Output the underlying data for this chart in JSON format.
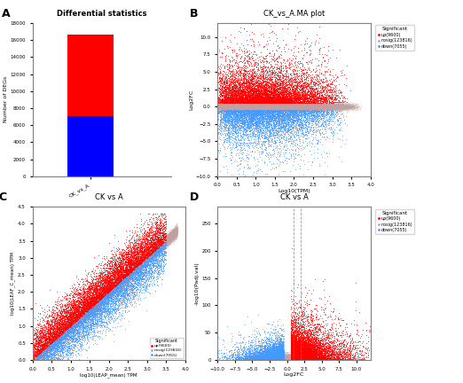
{
  "title_A": "Differential statistics",
  "title_B": "CK_vs_A.MA plot",
  "title_C": "CK vs A",
  "title_D": "CK vs A",
  "panel_labels": [
    "A",
    "B",
    "C",
    "D"
  ],
  "bar_down": 7055,
  "bar_up": 9600,
  "bar_total": 16655,
  "bar_color_up": "#FF0000",
  "bar_color_down": "#0000FF",
  "bar_label": "CK_vs_A",
  "ylabel_A": "Number of DEGs",
  "ylim_A": [
    0,
    18000
  ],
  "yticks_A": [
    0,
    2000,
    4000,
    6000,
    8000,
    10000,
    12000,
    14000,
    16000,
    18000
  ],
  "n_up": 9600,
  "n_nosig": 123816,
  "n_down": 7055,
  "color_up": "#FF0000",
  "color_nosig": "#C0A0A0",
  "color_down": "#4499FF",
  "xlabel_B": "Log10(TPM)",
  "ylabel_B": "Log2FC",
  "xlim_B": [
    0,
    4
  ],
  "ylim_B": [
    -10,
    12
  ],
  "xlabel_C": "log10(LEAP_mean) TPM",
  "ylabel_C": "log10(LEAF_C_mean) TPM",
  "xlim_C": [
    0,
    4
  ],
  "ylim_C": [
    0,
    4.5
  ],
  "xlabel_D": "Log2FC",
  "ylabel_D": "-log10(Padj.val)",
  "xlim_D": [
    -10,
    12
  ],
  "ylim_D": [
    0,
    280
  ],
  "bg_color": "#FFFFFF",
  "seed": 42
}
